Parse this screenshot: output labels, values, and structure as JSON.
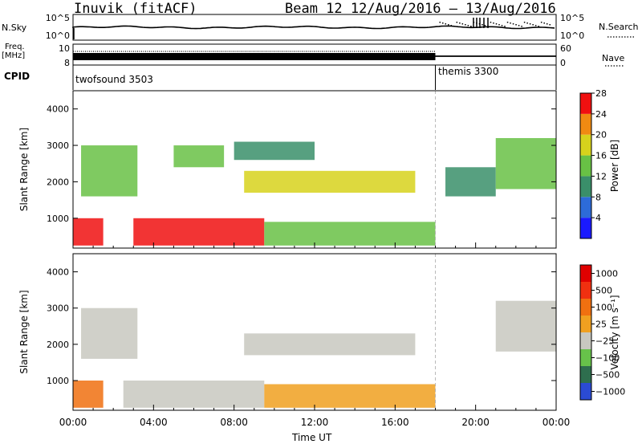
{
  "header": {
    "station": "Inuvik (fitACF)",
    "beam_info": "Beam 12  12/Aug/2016 – 13/Aug/2016"
  },
  "top_panels": {
    "nsky_label": "N.Sky",
    "nsky_ticks": [
      "10^5",
      "10^0"
    ],
    "nsearch_label": "N.Search",
    "nsearch_ticks": [
      "10^5",
      "10^0"
    ],
    "freq_label_1": "Freq.",
    "freq_label_2": "[MHz]",
    "freq_ticks": [
      "10",
      "8"
    ],
    "nave_label": "Nave",
    "nave_ticks": [
      "60",
      "0"
    ],
    "cpid_label": "CPID",
    "cpid_segments": [
      {
        "label": "twofsound 3503",
        "start_hour": 0
      },
      {
        "label": "themis 3300",
        "start_hour": 18
      }
    ]
  },
  "x_axis": {
    "label": "Time UT",
    "tick_labels": [
      "00:00",
      "04:00",
      "08:00",
      "12:00",
      "16:00",
      "20:00",
      "00:00"
    ],
    "range_hours": [
      0,
      24
    ]
  },
  "chart_data": [
    {
      "type": "heatmap",
      "title": "",
      "xlabel": "Time UT",
      "ylabel": "Slant Range [km]",
      "x_range_hours": [
        0,
        24
      ],
      "y_range_km": [
        180,
        4500
      ],
      "y_ticks": [
        "1000",
        "2000",
        "3000",
        "4000"
      ],
      "colorbar_label": "Power [dB]",
      "colorbar_ticks": [
        "4",
        "8",
        "12",
        "16",
        "20",
        "24",
        "28"
      ],
      "colors": [
        "#1a1aff",
        "#2d6bd8",
        "#3a8f6a",
        "#68c145",
        "#d7d21c",
        "#f08a12",
        "#f01010"
      ],
      "regions": [
        {
          "t0": 0.4,
          "t1": 3.2,
          "r0": 1600,
          "r1": 3000,
          "level": 3
        },
        {
          "t0": 0.0,
          "t1": 1.5,
          "r0": 250,
          "r1": 1000,
          "level": 6
        },
        {
          "t0": 3.0,
          "t1": 9.5,
          "r0": 250,
          "r1": 1000,
          "level": 6
        },
        {
          "t0": 5.0,
          "t1": 7.5,
          "r0": 2400,
          "r1": 3000,
          "level": 3
        },
        {
          "t0": 8.0,
          "t1": 12.0,
          "r0": 2600,
          "r1": 3100,
          "level": 2
        },
        {
          "t0": 8.5,
          "t1": 17.0,
          "r0": 1700,
          "r1": 2300,
          "level": 4
        },
        {
          "t0": 9.5,
          "t1": 18.0,
          "r0": 250,
          "r1": 900,
          "level": 3
        },
        {
          "t0": 18.5,
          "t1": 21.0,
          "r0": 1600,
          "r1": 2400,
          "level": 2
        },
        {
          "t0": 21.0,
          "t1": 24.0,
          "r0": 1800,
          "r1": 3200,
          "level": 3
        }
      ]
    },
    {
      "type": "heatmap",
      "title": "",
      "xlabel": "Time UT",
      "ylabel": "Slant Range [km]",
      "x_range_hours": [
        0,
        24
      ],
      "y_range_km": [
        180,
        4500
      ],
      "y_ticks": [
        "1000",
        "2000",
        "3000",
        "4000"
      ],
      "colorbar_label": "Velocity [m s⁻¹]",
      "colorbar_ticks": [
        "1000",
        "500",
        "100",
        "25",
        "−25",
        "−100",
        "−500",
        "−1000"
      ],
      "colors": [
        "#2b4bd4",
        "#2e6e4e",
        "#67c24a",
        "#c8c8c0",
        "#f0a020",
        "#f07010",
        "#f03010",
        "#e00000"
      ],
      "regions": [
        {
          "t0": 0.4,
          "t1": 3.2,
          "r0": 1600,
          "r1": 3000,
          "level": 3
        },
        {
          "t0": 0.0,
          "t1": 1.5,
          "r0": 250,
          "r1": 1000,
          "level": 5
        },
        {
          "t0": 2.5,
          "t1": 9.5,
          "r0": 250,
          "r1": 1000,
          "level": 3
        },
        {
          "t0": 8.5,
          "t1": 17.0,
          "r0": 1700,
          "r1": 2300,
          "level": 3
        },
        {
          "t0": 9.5,
          "t1": 18.0,
          "r0": 250,
          "r1": 900,
          "level": 4
        },
        {
          "t0": 21.0,
          "t1": 24.0,
          "r0": 1800,
          "r1": 3200,
          "level": 3
        }
      ]
    }
  ]
}
